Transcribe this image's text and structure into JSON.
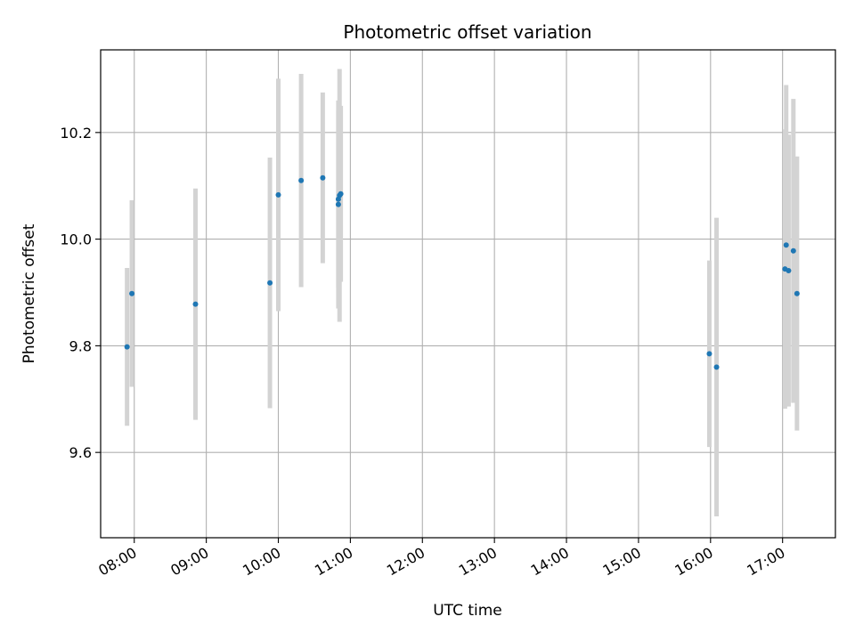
{
  "chart_data": {
    "type": "scatter",
    "title": "Photometric offset variation",
    "xlabel": "UTC time",
    "ylabel": "Photometric offset",
    "x_ticks": [
      "08:00",
      "09:00",
      "10:00",
      "11:00",
      "12:00",
      "13:00",
      "14:00",
      "15:00",
      "16:00",
      "17:00"
    ],
    "x_tick_hours": [
      8,
      9,
      10,
      11,
      12,
      13,
      14,
      15,
      16,
      17
    ],
    "y_ticks": [
      "9.6",
      "9.8",
      "10.0",
      "10.2"
    ],
    "y_tick_values": [
      9.6,
      9.8,
      10.0,
      10.2
    ],
    "xlim": [
      "07:32",
      "17:44"
    ],
    "ylim": [
      9.44,
      10.355
    ],
    "grid": true,
    "point_color": "#1f77b4",
    "errorbar_color": "#d3d3d3",
    "points": [
      {
        "time": "07:54",
        "y": 9.798,
        "err": 0.148
      },
      {
        "time": "07:58",
        "y": 9.898,
        "err": 0.175
      },
      {
        "time": "08:51",
        "y": 9.878,
        "err": 0.217
      },
      {
        "time": "09:53",
        "y": 9.918,
        "err": 0.235
      },
      {
        "time": "10:00",
        "y": 10.083,
        "err": 0.218
      },
      {
        "time": "10:19",
        "y": 10.11,
        "err": 0.2
      },
      {
        "time": "10:37",
        "y": 10.115,
        "err": 0.16
      },
      {
        "time": "10:50",
        "y": 10.075,
        "err": 0.165
      },
      {
        "time": "10:50",
        "y": 10.065,
        "err": 0.195
      },
      {
        "time": "10:51",
        "y": 10.082,
        "err": 0.237
      },
      {
        "time": "10:52",
        "y": 10.085,
        "err": 0.165
      },
      {
        "time": "15:59",
        "y": 9.785,
        "err": 0.175
      },
      {
        "time": "16:05",
        "y": 9.76,
        "err": 0.28
      },
      {
        "time": "17:02",
        "y": 9.944,
        "err": 0.262
      },
      {
        "time": "17:03",
        "y": 9.989,
        "err": 0.3
      },
      {
        "time": "17:05",
        "y": 9.941,
        "err": 0.255
      },
      {
        "time": "17:09",
        "y": 9.978,
        "err": 0.285
      },
      {
        "time": "17:12",
        "y": 9.898,
        "err": 0.257
      }
    ]
  }
}
